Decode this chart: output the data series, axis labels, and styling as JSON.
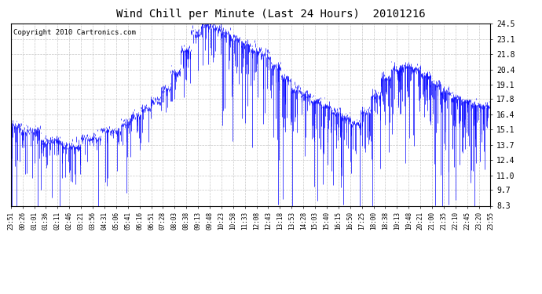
{
  "title": "Wind Chill per Minute (Last 24 Hours)  20101216",
  "copyright": "Copyright 2010 Cartronics.com",
  "yticks": [
    8.3,
    9.7,
    11.0,
    12.4,
    13.7,
    15.1,
    16.4,
    17.8,
    19.1,
    20.4,
    21.8,
    23.1,
    24.5
  ],
  "ylim": [
    8.3,
    24.5
  ],
  "xtick_labels": [
    "23:51",
    "00:26",
    "01:01",
    "01:36",
    "02:11",
    "02:46",
    "03:21",
    "03:56",
    "04:31",
    "05:06",
    "05:41",
    "06:16",
    "06:51",
    "07:28",
    "08:03",
    "08:38",
    "09:13",
    "09:48",
    "10:23",
    "10:58",
    "11:33",
    "12:08",
    "12:43",
    "13:18",
    "13:53",
    "14:28",
    "15:03",
    "15:40",
    "16:15",
    "16:50",
    "17:25",
    "18:00",
    "18:38",
    "19:13",
    "19:48",
    "20:21",
    "21:00",
    "21:35",
    "22:10",
    "22:45",
    "23:20",
    "23:55"
  ],
  "line_color": "#0000ff",
  "background_color": "#ffffff",
  "grid_color": "#b0b0b0",
  "title_fontsize": 10,
  "copyright_fontsize": 6.5
}
